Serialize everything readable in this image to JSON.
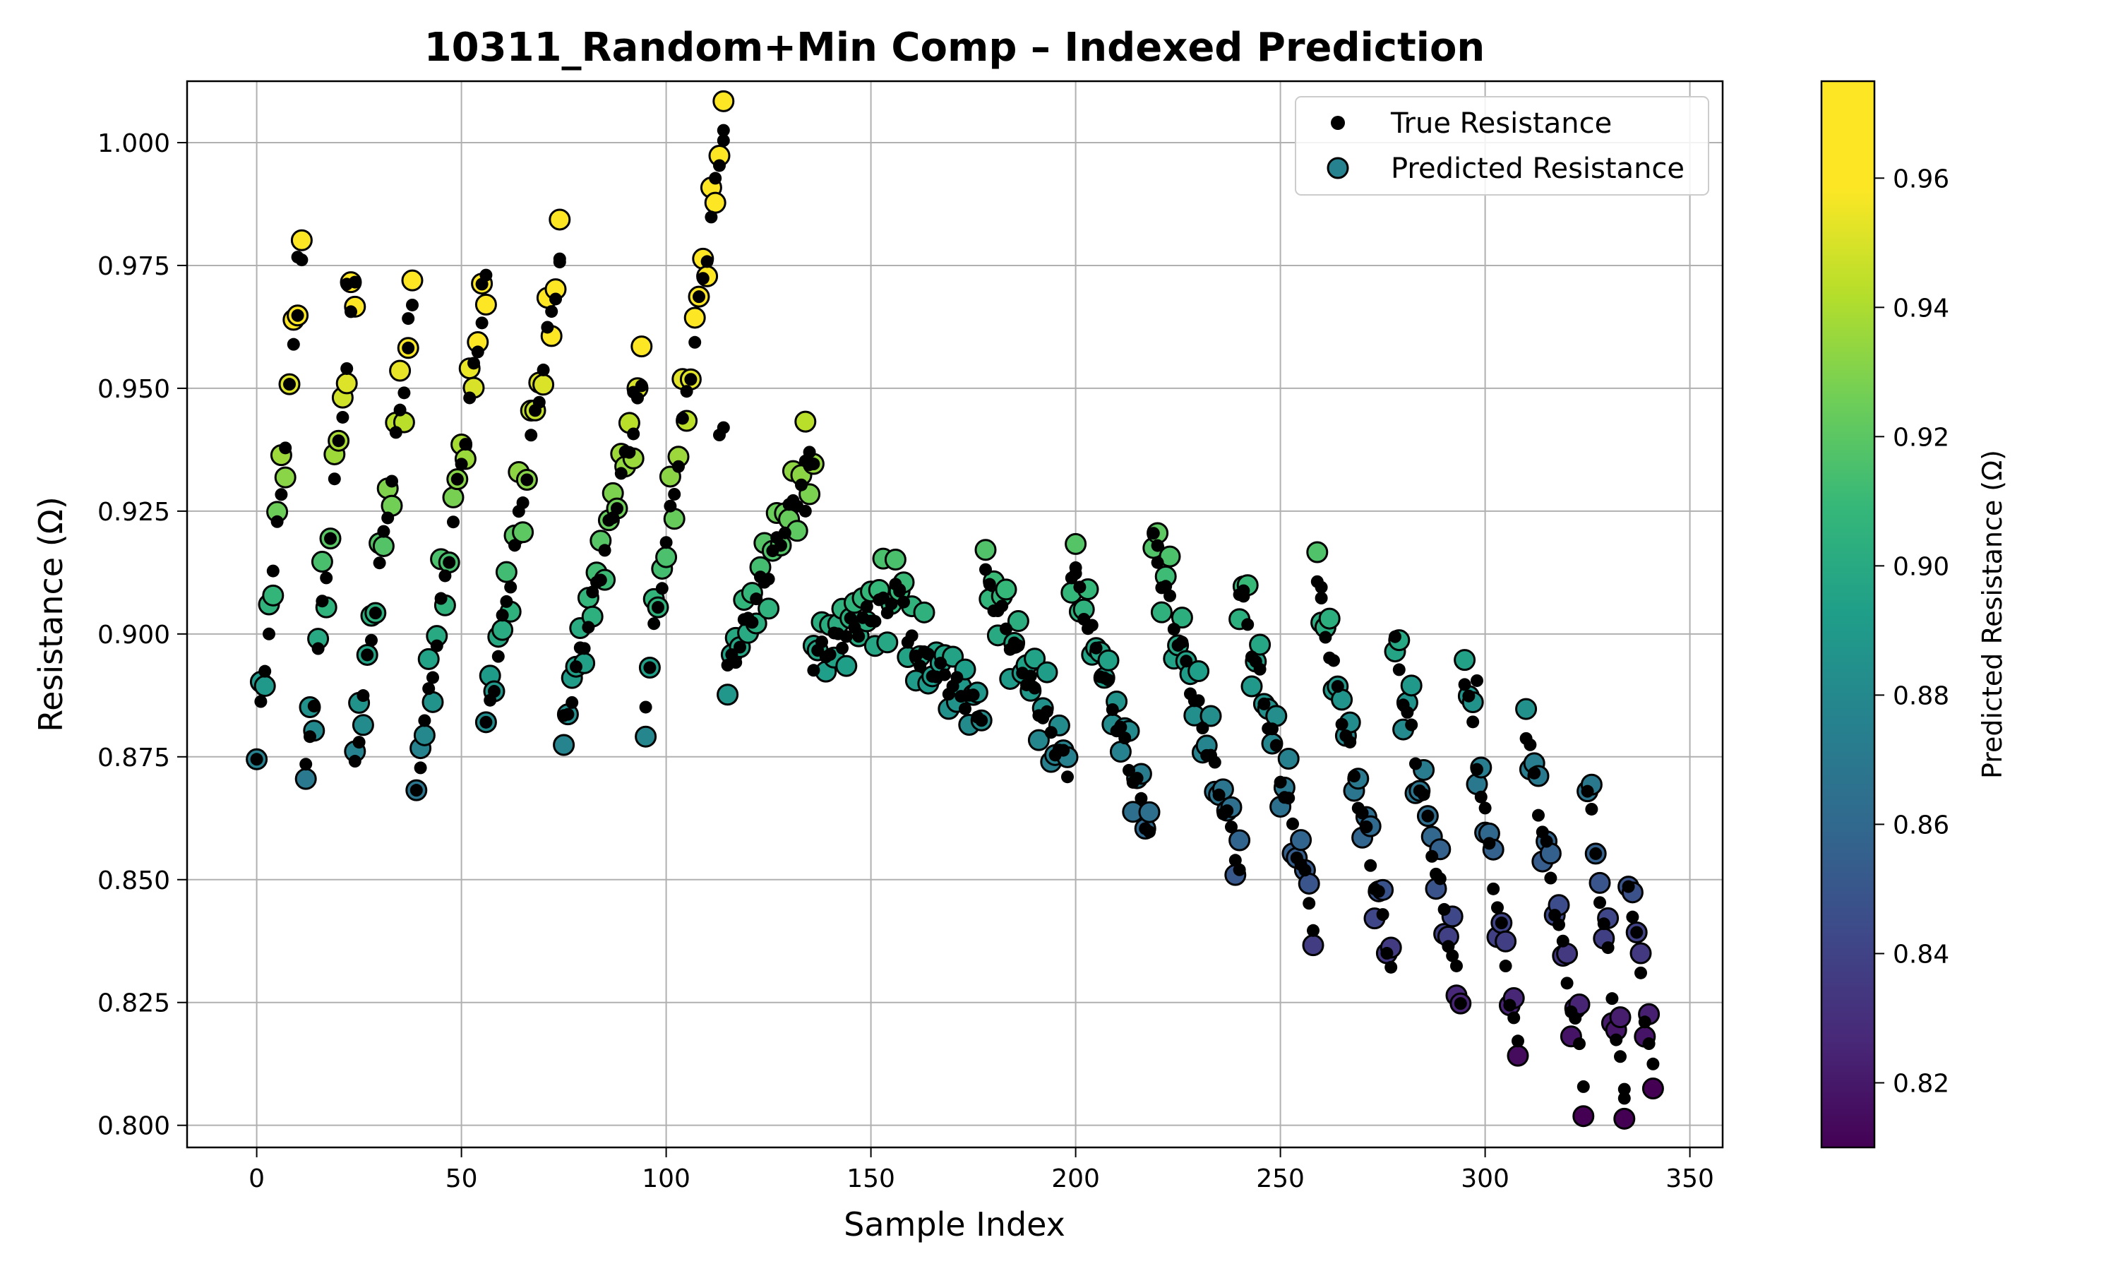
{
  "chart_data": {
    "type": "scatter",
    "title": "10311_Random+Min Comp – Indexed Prediction",
    "xlabel": "Sample Index",
    "ylabel": "Resistance (Ω)",
    "xlim": [
      -17,
      358
    ],
    "ylim": [
      0.7955,
      1.0125
    ],
    "x_ticks": [
      0,
      50,
      100,
      150,
      200,
      250,
      300,
      350
    ],
    "x_tick_labels": [
      "0",
      "50",
      "100",
      "150",
      "200",
      "250",
      "300",
      "350"
    ],
    "y_ticks": [
      0.8,
      0.825,
      0.85,
      0.875,
      0.9,
      0.925,
      0.95,
      0.975,
      1.0
    ],
    "y_tick_labels": [
      "0.800",
      "0.825",
      "0.850",
      "0.875",
      "0.900",
      "0.925",
      "0.950",
      "0.975",
      "1.000"
    ],
    "grid": true,
    "legend_position": "top-right",
    "series": [
      {
        "name": "True Resistance",
        "marker": "small-black-dot",
        "color": "#000000"
      },
      {
        "name": "Predicted Resistance",
        "marker": "circle-viridis-edge-black",
        "color_by": "value"
      }
    ],
    "colorbar": {
      "label": "Predicted Resistance (Ω)",
      "colormap": "viridis",
      "range": [
        0.81,
        0.975
      ],
      "ticks": [
        0.82,
        0.84,
        0.86,
        0.88,
        0.9,
        0.92,
        0.94,
        0.96
      ],
      "tick_labels": [
        "0.82",
        "0.84",
        "0.86",
        "0.88",
        "0.90",
        "0.92",
        "0.94",
        "0.96"
      ]
    },
    "segments": [
      [
        0,
        11,
        0.8745,
        0.9765
      ],
      [
        12,
        24,
        0.871,
        0.9715
      ],
      [
        24,
        38,
        0.874,
        0.9645
      ],
      [
        39,
        56,
        0.869,
        0.971
      ],
      [
        56,
        74,
        0.88,
        0.976
      ],
      [
        75,
        94,
        0.881,
        0.9495
      ],
      [
        95,
        114,
        0.8875,
        1.0025
      ],
      [
        115,
        136,
        0.892,
        0.937
      ],
      [
        136,
        158,
        0.895,
        0.909
      ],
      [
        159,
        177,
        0.898,
        0.884
      ],
      [
        178,
        198,
        0.911,
        0.872
      ],
      [
        199,
        218,
        0.9135,
        0.86
      ],
      [
        219,
        240,
        0.918,
        0.853
      ],
      [
        240,
        258,
        0.909,
        0.842
      ],
      [
        259,
        277,
        0.9095,
        0.833
      ],
      [
        278,
        294,
        0.897,
        0.8255
      ],
      [
        295,
        308,
        0.892,
        0.815
      ],
      [
        310,
        324,
        0.8805,
        0.81
      ],
      [
        325,
        334,
        0.869,
        0.8055
      ],
      [
        335,
        341,
        0.8505,
        0.81
      ]
    ],
    "highlight_points": [
      [
        10,
        0.9767
      ],
      [
        22,
        0.9712
      ],
      [
        37,
        0.9642
      ],
      [
        55,
        0.9712
      ],
      [
        74,
        0.9757
      ],
      [
        92,
        0.9492
      ],
      [
        114,
        1.0025
      ],
      [
        135,
        0.937
      ],
      [
        113,
        0.9405
      ],
      [
        114,
        0.942
      ],
      [
        134,
        0.925
      ],
      [
        157,
        0.909
      ],
      [
        200,
        0.9135
      ],
      [
        220,
        0.918
      ],
      [
        241,
        0.9088
      ],
      [
        260,
        0.9095
      ],
      [
        298,
        0.8905
      ],
      [
        334,
        0.8055
      ]
    ],
    "prediction_offsets": [
      0.0,
      0.004,
      -0.003,
      0.006,
      -0.005,
      0.002,
      0.008,
      -0.006,
      0.0,
      0.005
    ]
  }
}
